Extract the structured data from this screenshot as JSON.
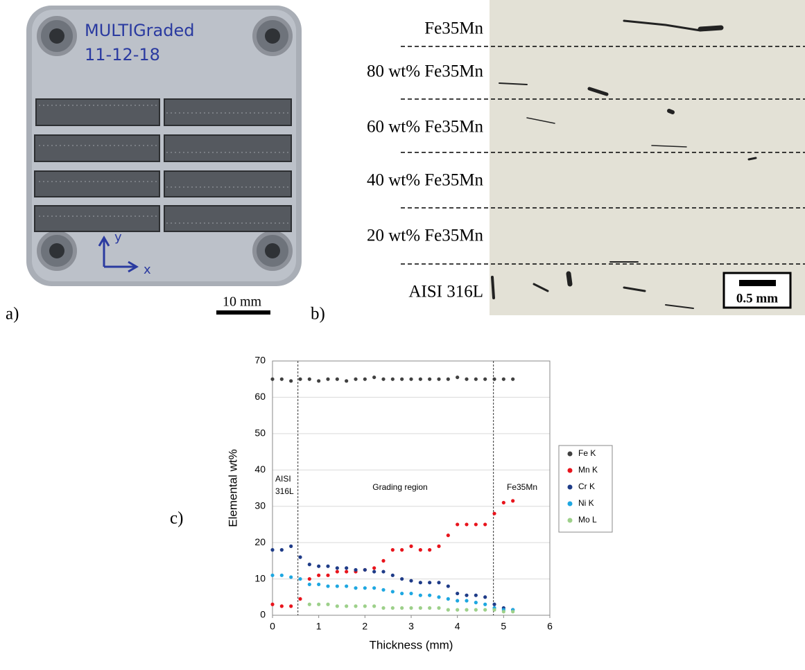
{
  "panels": {
    "a": {
      "label": "a)",
      "handwriting": [
        "MULTIGraded",
        "11-12-18"
      ],
      "axes": [
        "y",
        "x"
      ],
      "scale_bar": "10 mm"
    },
    "b": {
      "label": "b)",
      "layers": [
        "Fe35Mn",
        "80 wt% Fe35Mn",
        "60 wt% Fe35Mn",
        "40 wt% Fe35Mn",
        "20 wt% Fe35Mn",
        "AISI 316L"
      ],
      "scale_bar": "0.5 mm"
    },
    "c": {
      "label": "c)"
    }
  },
  "chart_data": {
    "type": "scatter",
    "x_label": "Thickness (mm)",
    "y_label": "Elemental wt%",
    "x": [
      0,
      0.2,
      0.4,
      0.6,
      0.8,
      1.0,
      1.2,
      1.4,
      1.6,
      1.8,
      2.0,
      2.2,
      2.4,
      2.6,
      2.8,
      3.0,
      3.2,
      3.4,
      3.6,
      3.8,
      4.0,
      4.2,
      4.4,
      4.6,
      4.8,
      5.0,
      5.2
    ],
    "series": [
      {
        "name": "Fe K",
        "color": "#404040",
        "values": [
          65,
          65,
          64.5,
          65,
          65,
          64.5,
          65,
          65,
          64.5,
          65,
          65,
          65.5,
          65,
          65,
          65,
          65,
          65,
          65,
          65,
          65,
          65.5,
          65,
          65,
          65,
          65,
          65,
          65
        ]
      },
      {
        "name": "Mn K",
        "color": "#e8141c",
        "values": [
          3,
          2.5,
          2.5,
          4.5,
          10,
          11,
          11,
          12,
          12,
          12,
          12.5,
          13,
          15,
          18,
          18,
          19,
          18,
          18,
          19,
          22,
          25,
          25,
          25,
          25,
          28,
          31,
          31.5
        ]
      },
      {
        "name": "Cr K",
        "color": "#1f3c88",
        "values": [
          18,
          18,
          19,
          16,
          14,
          13.5,
          13.5,
          13,
          13,
          12.5,
          12.5,
          12,
          12,
          11,
          10,
          9.5,
          9,
          9,
          9,
          8,
          6,
          5.5,
          5.5,
          5,
          3,
          2,
          1.5
        ]
      },
      {
        "name": "Ni K",
        "color": "#1ea7e1",
        "values": [
          11,
          11,
          10.5,
          10,
          8.5,
          8.5,
          8,
          8,
          8,
          7.5,
          7.5,
          7.5,
          7,
          6.5,
          6,
          6,
          5.5,
          5.5,
          5,
          4.5,
          4,
          4,
          3.5,
          3,
          2,
          1.5,
          1.5
        ]
      },
      {
        "name": "Mo L",
        "color": "#9dd08a",
        "values": [
          null,
          null,
          null,
          null,
          3,
          3,
          3,
          2.5,
          2.5,
          2.5,
          2.5,
          2.5,
          2,
          2,
          2,
          2,
          2,
          2,
          2,
          1.5,
          1.5,
          1.5,
          1.5,
          1.5,
          1.5,
          1,
          1
        ]
      }
    ],
    "vlines": [
      0.55,
      4.78
    ],
    "annotations": [
      "AISI",
      "316L",
      "Grading region",
      "Fe35Mn"
    ],
    "xlim": [
      0,
      6
    ],
    "xticks": [
      0,
      1,
      2,
      3,
      4,
      5,
      6
    ],
    "ylim": [
      0,
      70
    ],
    "yticks": [
      0,
      10,
      20,
      30,
      40,
      50,
      60,
      70
    ],
    "grid": true,
    "legend": "right"
  }
}
